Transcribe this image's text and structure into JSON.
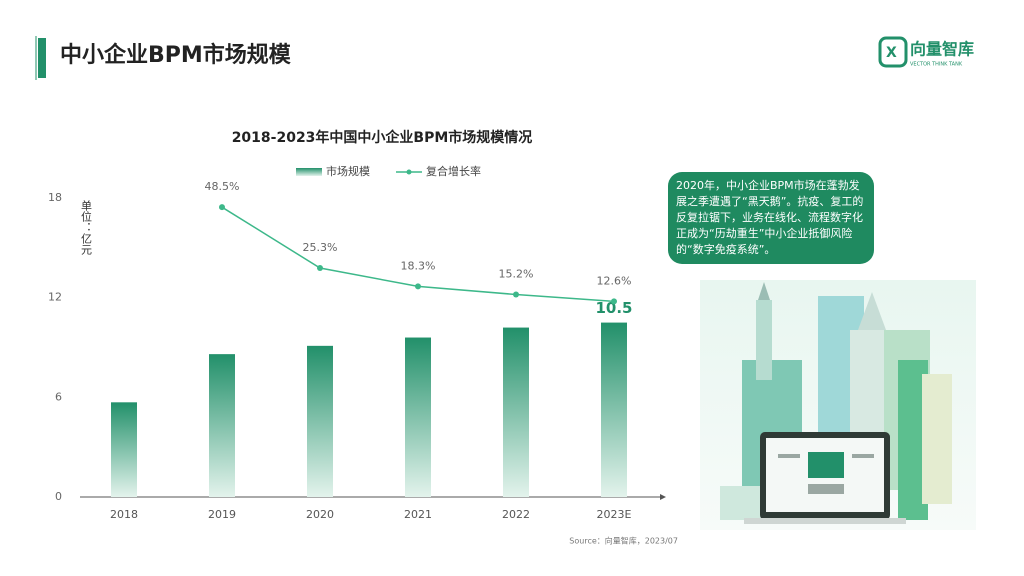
{
  "header": {
    "title": "中小企业BPM市场规模",
    "logo": "向量智库",
    "logo_sub": "VECTOR THINK TANK"
  },
  "chart_data": {
    "type": "bar",
    "title": "2018-2023年中国中小企业BPM市场规模情况",
    "ylabel": "单位：亿元",
    "categories": [
      "2018",
      "2019",
      "2020",
      "2021",
      "2022",
      "2023E"
    ],
    "series": [
      {
        "name": "市场规模",
        "type": "bar",
        "color": "#22906a",
        "values": [
          5.7,
          8.6,
          9.1,
          9.6,
          10.2,
          10.5
        ],
        "value_labels": [
          null,
          null,
          null,
          null,
          null,
          "10.5"
        ]
      },
      {
        "name": "复合增长率",
        "type": "line",
        "axis": "y2",
        "color": "#3db88a",
        "values": [
          null,
          48.5,
          25.3,
          18.3,
          15.2,
          12.6
        ],
        "value_labels": [
          null,
          "48.5%",
          "25.3%",
          "18.3%",
          "15.2%",
          "12.6%"
        ]
      }
    ],
    "ylim": [
      0,
      18
    ],
    "yticks": [
      0,
      6,
      12,
      18
    ],
    "y2lim": [
      -62,
      52
    ],
    "legend": "top",
    "grid": false
  },
  "callout": "2020年，中小企业BPM市场在蓬勃发展之季遭遇了“黑天鹅”。抗疫、复工的反复拉锯下，业务在线化、流程数字化正成为“历劫重生”中小企业抵御风险的“数字免疫系统”。",
  "source": "Source：向量智库，2023/07"
}
